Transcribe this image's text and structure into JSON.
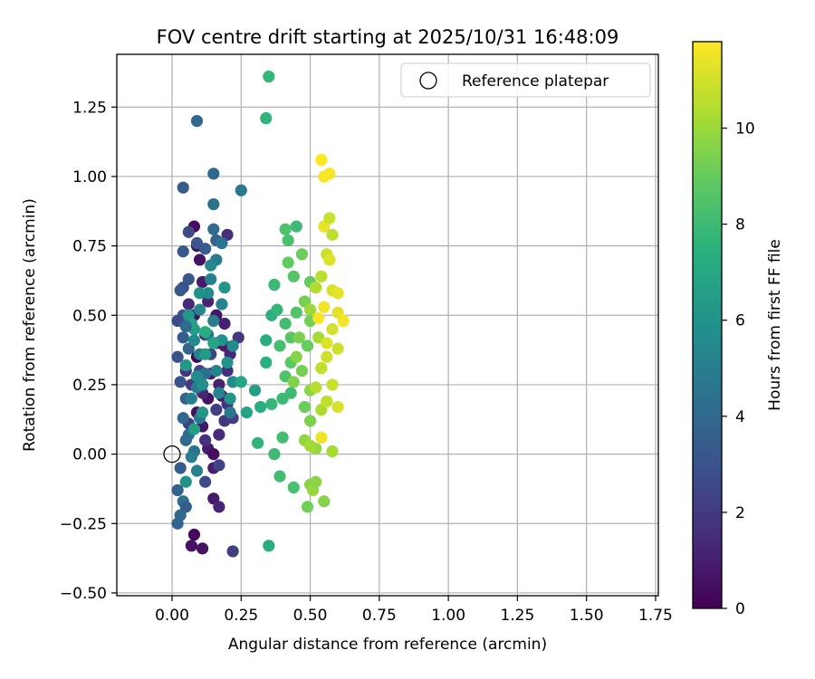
{
  "chart_data": {
    "type": "scatter",
    "title": "FOV centre drift starting at 2025/10/31 16:48:09",
    "xlabel": "Angular distance from reference (arcmin)",
    "ylabel": "Rotation from reference (arcmin)",
    "xlim": [
      -0.2,
      1.76
    ],
    "ylim": [
      -0.51,
      1.44
    ],
    "xticks": [
      0.0,
      0.25,
      0.5,
      0.75,
      1.0,
      1.25,
      1.5,
      1.75
    ],
    "xtick_labels": [
      "0.00",
      "0.25",
      "0.50",
      "0.75",
      "1.00",
      "1.25",
      "1.50",
      "1.75"
    ],
    "yticks": [
      -0.5,
      -0.25,
      0.0,
      0.25,
      0.5,
      0.75,
      1.0,
      1.25
    ],
    "ytick_labels": [
      "−0.50",
      "−0.25",
      "0.00",
      "0.25",
      "0.50",
      "0.75",
      "1.00",
      "1.25"
    ],
    "grid": true,
    "legend": {
      "position": "top-right",
      "entries": [
        {
          "label": "Reference platepar",
          "marker": "open-circle"
        }
      ]
    },
    "reference_point": {
      "x": 0.0,
      "y": 0.0
    },
    "colorbar": {
      "label": "Hours from first FF file",
      "colormap": "viridis",
      "range": [
        0,
        11.8
      ],
      "ticks": [
        0,
        2,
        4,
        6,
        8,
        10
      ],
      "tick_labels": [
        "0",
        "2",
        "4",
        "6",
        "8",
        "10"
      ]
    },
    "series": [
      {
        "name": "FOV centre drift",
        "points": [
          {
            "x": 0.08,
            "y": -0.29,
            "t": 0.3
          },
          {
            "x": 0.11,
            "y": -0.34,
            "t": 0.6
          },
          {
            "x": 0.07,
            "y": -0.33,
            "t": 0.5
          },
          {
            "x": 0.15,
            "y": -0.16,
            "t": 0.8
          },
          {
            "x": 0.17,
            "y": -0.19,
            "t": 1.2
          },
          {
            "x": 0.15,
            "y": -0.05,
            "t": 1.0
          },
          {
            "x": 0.13,
            "y": 0.02,
            "t": 0.9
          },
          {
            "x": 0.17,
            "y": 0.07,
            "t": 1.4
          },
          {
            "x": 0.11,
            "y": 0.1,
            "t": 0.7
          },
          {
            "x": 0.09,
            "y": 0.15,
            "t": 0.5
          },
          {
            "x": 0.19,
            "y": 0.12,
            "t": 1.8
          },
          {
            "x": 0.22,
            "y": 0.13,
            "t": 2.1
          },
          {
            "x": 0.13,
            "y": 0.2,
            "t": 0.6
          },
          {
            "x": 0.17,
            "y": 0.25,
            "t": 1.1
          },
          {
            "x": 0.2,
            "y": 0.3,
            "t": 1.5
          },
          {
            "x": 0.24,
            "y": 0.42,
            "t": 1.9
          },
          {
            "x": 0.19,
            "y": 0.39,
            "t": 0.8
          },
          {
            "x": 0.21,
            "y": 0.36,
            "t": 1.3
          },
          {
            "x": 0.16,
            "y": 0.4,
            "t": 0.4
          },
          {
            "x": 0.09,
            "y": 0.35,
            "t": 0.2
          },
          {
            "x": 0.1,
            "y": 0.7,
            "t": 0.6
          },
          {
            "x": 0.09,
            "y": 0.75,
            "t": 0.4
          },
          {
            "x": 0.08,
            "y": 0.82,
            "t": 0.3
          },
          {
            "x": 0.2,
            "y": 0.79,
            "t": 1.6
          },
          {
            "x": 0.11,
            "y": 0.62,
            "t": 0.9
          },
          {
            "x": 0.13,
            "y": 0.55,
            "t": 1.2
          },
          {
            "x": 0.16,
            "y": 0.5,
            "t": 0.7
          },
          {
            "x": 0.19,
            "y": 0.47,
            "t": 1.0
          },
          {
            "x": 0.08,
            "y": 0.5,
            "t": 0.5
          },
          {
            "x": 0.06,
            "y": 0.54,
            "t": 1.4
          },
          {
            "x": 0.05,
            "y": 0.3,
            "t": 1.7
          },
          {
            "x": 0.07,
            "y": 0.25,
            "t": 2.0
          },
          {
            "x": 0.11,
            "y": 0.22,
            "t": 1.3
          },
          {
            "x": 0.14,
            "y": 0.29,
            "t": 0.9
          },
          {
            "x": 0.18,
            "y": 0.21,
            "t": 0.6
          },
          {
            "x": 0.06,
            "y": 0.11,
            "t": 2.3
          },
          {
            "x": 0.12,
            "y": 0.05,
            "t": 1.6
          },
          {
            "x": 0.15,
            "y": 0.0,
            "t": 0.4
          },
          {
            "x": 0.16,
            "y": 0.16,
            "t": 2.2
          },
          {
            "x": 0.12,
            "y": 0.43,
            "t": 1.1
          },
          {
            "x": 0.14,
            "y": 0.36,
            "t": 2.4
          },
          {
            "x": 0.2,
            "y": 0.18,
            "t": 1.7
          },
          {
            "x": 0.1,
            "y": 0.3,
            "t": 2.5
          },
          {
            "x": 0.22,
            "y": -0.35,
            "t": 2.2
          },
          {
            "x": 0.12,
            "y": -0.1,
            "t": 2.6
          },
          {
            "x": 0.17,
            "y": -0.04,
            "t": 2.4
          },
          {
            "x": 0.04,
            "y": 0.6,
            "t": 2.8
          },
          {
            "x": 0.06,
            "y": 0.63,
            "t": 3.2
          },
          {
            "x": 0.04,
            "y": 0.5,
            "t": 3.0
          },
          {
            "x": 0.02,
            "y": 0.48,
            "t": 2.7
          },
          {
            "x": 0.04,
            "y": 0.42,
            "t": 3.4
          },
          {
            "x": 0.06,
            "y": 0.38,
            "t": 3.8
          },
          {
            "x": 0.03,
            "y": 0.26,
            "t": 3.1
          },
          {
            "x": 0.05,
            "y": 0.2,
            "t": 3.6
          },
          {
            "x": 0.04,
            "y": 0.13,
            "t": 3.9
          },
          {
            "x": 0.05,
            "y": 0.05,
            "t": 4.1
          },
          {
            "x": 0.03,
            "y": -0.05,
            "t": 3.3
          },
          {
            "x": 0.02,
            "y": -0.13,
            "t": 3.7
          },
          {
            "x": 0.04,
            "y": -0.17,
            "t": 4.3
          },
          {
            "x": 0.05,
            "y": -0.19,
            "t": 3.5
          },
          {
            "x": 0.03,
            "y": -0.22,
            "t": 4.0
          },
          {
            "x": 0.02,
            "y": -0.25,
            "t": 3.8
          },
          {
            "x": 0.02,
            "y": 0.35,
            "t": 2.9
          },
          {
            "x": 0.04,
            "y": 0.73,
            "t": 3.2
          },
          {
            "x": 0.04,
            "y": 0.96,
            "t": 3.5
          },
          {
            "x": 0.09,
            "y": 1.2,
            "t": 4.0
          },
          {
            "x": 0.15,
            "y": 1.01,
            "t": 3.9
          },
          {
            "x": 0.15,
            "y": 0.9,
            "t": 4.5
          },
          {
            "x": 0.15,
            "y": 0.81,
            "t": 4.2
          },
          {
            "x": 0.16,
            "y": 0.77,
            "t": 3.6
          },
          {
            "x": 0.12,
            "y": 0.74,
            "t": 3.4
          },
          {
            "x": 0.09,
            "y": 0.76,
            "t": 3.1
          },
          {
            "x": 0.06,
            "y": 0.8,
            "t": 2.7
          },
          {
            "x": 0.18,
            "y": 0.76,
            "t": 4.6
          },
          {
            "x": 0.25,
            "y": 0.95,
            "t": 4.8
          },
          {
            "x": 0.16,
            "y": 0.7,
            "t": 4.9
          },
          {
            "x": 0.14,
            "y": 0.63,
            "t": 5.1
          },
          {
            "x": 0.18,
            "y": 0.54,
            "t": 5.3
          },
          {
            "x": 0.15,
            "y": 0.48,
            "t": 5.0
          },
          {
            "x": 0.13,
            "y": 0.43,
            "t": 4.7
          },
          {
            "x": 0.1,
            "y": 0.36,
            "t": 5.2
          },
          {
            "x": 0.08,
            "y": 0.41,
            "t": 5.5
          },
          {
            "x": 0.12,
            "y": 0.29,
            "t": 4.4
          },
          {
            "x": 0.09,
            "y": 0.24,
            "t": 4.8
          },
          {
            "x": 0.07,
            "y": 0.2,
            "t": 5.0
          },
          {
            "x": 0.1,
            "y": 0.13,
            "t": 4.6
          },
          {
            "x": 0.06,
            "y": 0.07,
            "t": 4.2
          },
          {
            "x": 0.08,
            "y": 0.01,
            "t": 4.5
          },
          {
            "x": 0.09,
            "y": -0.06,
            "t": 5.1
          },
          {
            "x": 0.07,
            "y": -0.01,
            "t": 4.9
          },
          {
            "x": 0.1,
            "y": 0.52,
            "t": 5.4
          },
          {
            "x": 0.13,
            "y": 0.58,
            "t": 5.6
          },
          {
            "x": 0.09,
            "y": 0.28,
            "t": 5.7
          },
          {
            "x": 0.11,
            "y": 0.25,
            "t": 5.8
          },
          {
            "x": 0.16,
            "y": 0.3,
            "t": 5.3
          },
          {
            "x": 0.18,
            "y": 0.41,
            "t": 5.9
          },
          {
            "x": 0.22,
            "y": 0.39,
            "t": 5.5
          },
          {
            "x": 0.2,
            "y": 0.33,
            "t": 6.0
          },
          {
            "x": 0.22,
            "y": 0.26,
            "t": 5.6
          },
          {
            "x": 0.21,
            "y": 0.2,
            "t": 6.1
          },
          {
            "x": 0.14,
            "y": 0.68,
            "t": 5.4
          },
          {
            "x": 0.19,
            "y": 0.6,
            "t": 6.1
          },
          {
            "x": 0.17,
            "y": 0.22,
            "t": 5.2
          },
          {
            "x": 0.21,
            "y": 0.15,
            "t": 4.7
          },
          {
            "x": 0.05,
            "y": 0.32,
            "t": 6.3
          },
          {
            "x": 0.08,
            "y": 0.45,
            "t": 6.5
          },
          {
            "x": 0.06,
            "y": 0.5,
            "t": 6.2
          },
          {
            "x": 0.1,
            "y": 0.58,
            "t": 6.0
          },
          {
            "x": 0.12,
            "y": 0.36,
            "t": 6.4
          },
          {
            "x": 0.11,
            "y": 0.15,
            "t": 6.2
          },
          {
            "x": 0.08,
            "y": 0.09,
            "t": 6.6
          },
          {
            "x": 0.05,
            "y": -0.1,
            "t": 6.0
          },
          {
            "x": 0.07,
            "y": 0.47,
            "t": 6.7
          },
          {
            "x": 0.15,
            "y": 0.4,
            "t": 6.8
          },
          {
            "x": 0.12,
            "y": 0.44,
            "t": 7.2
          },
          {
            "x": 0.25,
            "y": 0.26,
            "t": 7.0
          },
          {
            "x": 0.27,
            "y": 0.15,
            "t": 6.8
          },
          {
            "x": 0.3,
            "y": 0.23,
            "t": 6.6
          },
          {
            "x": 0.03,
            "y": 0.59,
            "t": 3.3
          },
          {
            "x": 0.05,
            "y": 0.46,
            "t": 4.0
          },
          {
            "x": 0.35,
            "y": 1.36,
            "t": 7.8
          },
          {
            "x": 0.34,
            "y": 1.21,
            "t": 7.6
          },
          {
            "x": 0.34,
            "y": 0.41,
            "t": 7.4
          },
          {
            "x": 0.37,
            "y": 0.61,
            "t": 7.9
          },
          {
            "x": 0.36,
            "y": 0.5,
            "t": 7.5
          },
          {
            "x": 0.38,
            "y": 0.52,
            "t": 7.7
          },
          {
            "x": 0.32,
            "y": 0.17,
            "t": 7.3
          },
          {
            "x": 0.36,
            "y": 0.18,
            "t": 7.8
          },
          {
            "x": 0.31,
            "y": 0.04,
            "t": 7.6
          },
          {
            "x": 0.35,
            "y": -0.33,
            "t": 7.3
          },
          {
            "x": 0.37,
            "y": 0.0,
            "t": 8.0
          },
          {
            "x": 0.39,
            "y": -0.08,
            "t": 8.1
          },
          {
            "x": 0.4,
            "y": 0.06,
            "t": 8.2
          },
          {
            "x": 0.4,
            "y": 0.2,
            "t": 7.9
          },
          {
            "x": 0.34,
            "y": 0.33,
            "t": 7.4
          },
          {
            "x": 0.41,
            "y": 0.81,
            "t": 8.4
          },
          {
            "x": 0.45,
            "y": 0.82,
            "t": 8.0
          },
          {
            "x": 0.42,
            "y": 0.77,
            "t": 8.3
          },
          {
            "x": 0.44,
            "y": 0.64,
            "t": 8.6
          },
          {
            "x": 0.41,
            "y": 0.47,
            "t": 8.1
          },
          {
            "x": 0.45,
            "y": 0.51,
            "t": 8.5
          },
          {
            "x": 0.43,
            "y": 0.42,
            "t": 8.7
          },
          {
            "x": 0.39,
            "y": 0.39,
            "t": 8.2
          },
          {
            "x": 0.43,
            "y": 0.33,
            "t": 8.8
          },
          {
            "x": 0.41,
            "y": 0.28,
            "t": 8.4
          },
          {
            "x": 0.43,
            "y": 0.22,
            "t": 8.0
          },
          {
            "x": 0.44,
            "y": -0.12,
            "t": 8.3
          },
          {
            "x": 0.42,
            "y": 0.69,
            "t": 8.9
          },
          {
            "x": 0.47,
            "y": 0.72,
            "t": 9.1
          },
          {
            "x": 0.5,
            "y": 0.62,
            "t": 9.0
          },
          {
            "x": 0.48,
            "y": 0.55,
            "t": 9.3
          },
          {
            "x": 0.5,
            "y": 0.48,
            "t": 9.2
          },
          {
            "x": 0.46,
            "y": 0.42,
            "t": 9.4
          },
          {
            "x": 0.49,
            "y": 0.39,
            "t": 9.0
          },
          {
            "x": 0.45,
            "y": 0.35,
            "t": 9.6
          },
          {
            "x": 0.47,
            "y": 0.3,
            "t": 9.3
          },
          {
            "x": 0.44,
            "y": 0.26,
            "t": 9.5
          },
          {
            "x": 0.5,
            "y": 0.23,
            "t": 9.7
          },
          {
            "x": 0.48,
            "y": 0.17,
            "t": 9.1
          },
          {
            "x": 0.5,
            "y": 0.12,
            "t": 9.4
          },
          {
            "x": 0.48,
            "y": 0.05,
            "t": 9.8
          },
          {
            "x": 0.49,
            "y": -0.19,
            "t": 9.2
          },
          {
            "x": 0.5,
            "y": -0.11,
            "t": 9.6
          },
          {
            "x": 0.51,
            "y": -0.13,
            "t": 9.9
          },
          {
            "x": 0.52,
            "y": -0.1,
            "t": 9.7
          },
          {
            "x": 0.52,
            "y": 0.02,
            "t": 9.9
          },
          {
            "x": 0.5,
            "y": 0.03,
            "t": 10.1
          },
          {
            "x": 0.53,
            "y": 0.42,
            "t": 10.2
          },
          {
            "x": 0.5,
            "y": 0.52,
            "t": 10.0
          },
          {
            "x": 0.52,
            "y": 0.6,
            "t": 10.4
          },
          {
            "x": 0.54,
            "y": 0.64,
            "t": 10.6
          },
          {
            "x": 0.56,
            "y": 0.72,
            "t": 10.8
          },
          {
            "x": 0.54,
            "y": 0.16,
            "t": 10.3
          },
          {
            "x": 0.55,
            "y": -0.17,
            "t": 9.6
          },
          {
            "x": 0.52,
            "y": 0.24,
            "t": 10.5
          },
          {
            "x": 0.54,
            "y": 0.31,
            "t": 10.7
          },
          {
            "x": 0.56,
            "y": 0.35,
            "t": 10.9
          },
          {
            "x": 0.58,
            "y": 0.25,
            "t": 10.8
          },
          {
            "x": 0.58,
            "y": 0.59,
            "t": 11.1
          },
          {
            "x": 0.6,
            "y": 0.51,
            "t": 11.3
          },
          {
            "x": 0.58,
            "y": 0.45,
            "t": 11.0
          },
          {
            "x": 0.56,
            "y": 0.4,
            "t": 11.2
          },
          {
            "x": 0.6,
            "y": 0.58,
            "t": 11.4
          },
          {
            "x": 0.62,
            "y": 0.48,
            "t": 11.6
          },
          {
            "x": 0.55,
            "y": 0.53,
            "t": 11.5
          },
          {
            "x": 0.53,
            "y": 0.49,
            "t": 11.7
          },
          {
            "x": 0.57,
            "y": 1.01,
            "t": 11.6
          },
          {
            "x": 0.54,
            "y": 1.06,
            "t": 11.8
          },
          {
            "x": 0.55,
            "y": 1.0,
            "t": 11.7
          },
          {
            "x": 0.55,
            "y": 0.82,
            "t": 11.4
          },
          {
            "x": 0.57,
            "y": 0.85,
            "t": 10.8
          },
          {
            "x": 0.58,
            "y": 0.79,
            "t": 10.6
          },
          {
            "x": 0.57,
            "y": 0.7,
            "t": 11.2
          },
          {
            "x": 0.6,
            "y": 0.38,
            "t": 10.9
          },
          {
            "x": 0.6,
            "y": 0.17,
            "t": 11.1
          },
          {
            "x": 0.56,
            "y": 0.19,
            "t": 10.7
          },
          {
            "x": 0.54,
            "y": 0.06,
            "t": 11.5
          },
          {
            "x": 0.58,
            "y": 0.01,
            "t": 10.2
          }
        ]
      }
    ]
  }
}
